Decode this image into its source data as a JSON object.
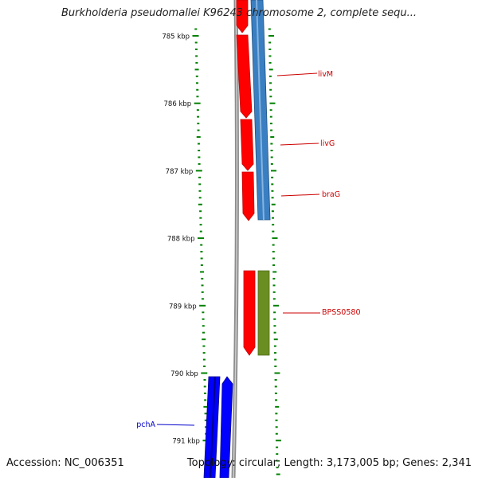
{
  "title": "Burkholderia pseudomallei K96243 chromosome 2, complete sequ...",
  "accession_label": "Accession: NC_006351",
  "topology_label": "Topology: circular; Length: 3,173,005 bp; Genes: 2,341",
  "colors": {
    "backbone": "#8c8c8c",
    "forward_cds": "#ff0000",
    "forward_cds_dark": "#c40000",
    "reverse_cds": "#3a7fc1",
    "reverse_cds_dark": "#1f4f80",
    "blue_cds": "#0000ff",
    "blue_cds_dark": "#00008a",
    "olive_cds": "#6b8e23",
    "olive_cds_dark": "#4a6a14",
    "tick": "#008000",
    "gene_label_red": "#cc0000",
    "gene_label_blue": "#0000cc"
  },
  "ruler": {
    "major_labels": [
      "785 kbp",
      "786 kbp",
      "787 kbp",
      "788 kbp",
      "789 kbp",
      "790 kbp",
      "791 kbp"
    ]
  },
  "gene_labels": [
    {
      "name": "livM",
      "color": "red"
    },
    {
      "name": "livG",
      "color": "red"
    },
    {
      "name": "braG",
      "color": "red"
    },
    {
      "name": "BPSS0580",
      "color": "red"
    },
    {
      "name": "pchA",
      "color": "blue"
    }
  ]
}
